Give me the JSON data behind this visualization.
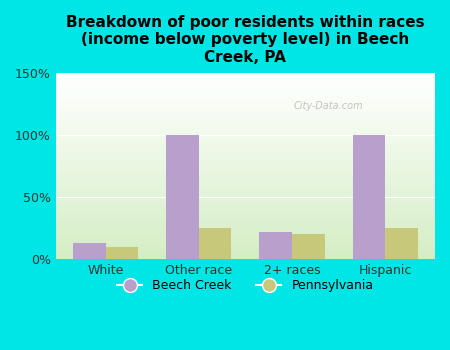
{
  "title": "Breakdown of poor residents within races\n(income below poverty level) in Beech\nCreek, PA",
  "categories": [
    "White",
    "Other race",
    "2+ races",
    "Hispanic"
  ],
  "beech_creek": [
    13,
    100,
    22,
    100
  ],
  "pennsylvania": [
    10,
    25,
    20,
    25
  ],
  "beech_creek_color": "#b89fcc",
  "pennsylvania_color": "#c8c87a",
  "background_color": "#00e5e5",
  "plot_bg_top": "#ffffff",
  "plot_bg_bottom": "#d4edc4",
  "ylim": [
    0,
    150
  ],
  "yticks": [
    0,
    50,
    100,
    150
  ],
  "ytick_labels": [
    "0%",
    "50%",
    "100%",
    "150%"
  ],
  "bar_width": 0.35,
  "legend_labels": [
    "Beech Creek",
    "Pennsylvania"
  ],
  "watermark": "City-Data.com"
}
